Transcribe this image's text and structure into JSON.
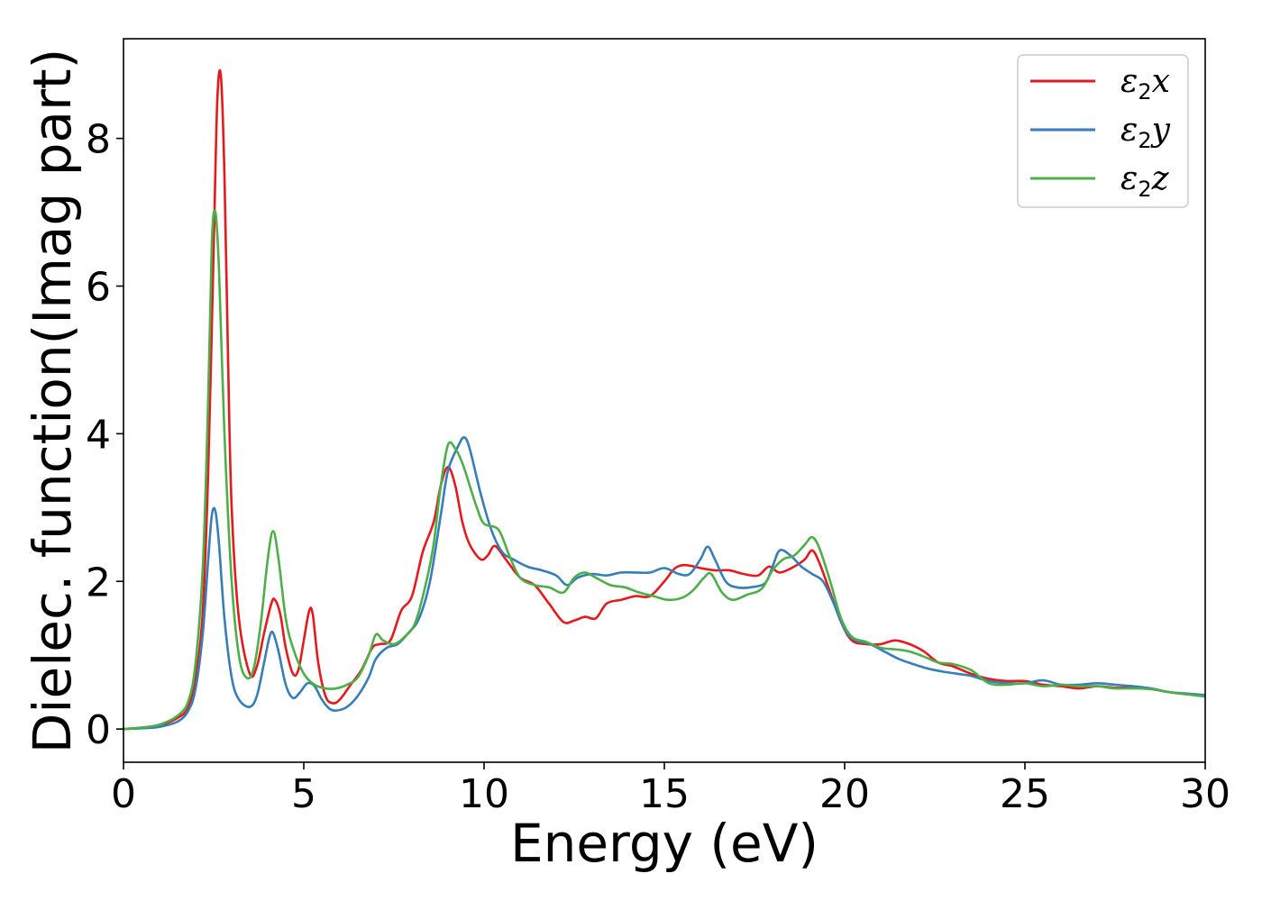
{
  "chart_data": {
    "type": "line",
    "xlabel": "Energy (eV)",
    "ylabel": "Dielec. function(Imag part)",
    "xlim": [
      0,
      30
    ],
    "ylim": [
      -0.45,
      9.35
    ],
    "xticks": [
      0,
      5,
      10,
      15,
      20,
      25,
      30
    ],
    "xtick_labels": [
      "0",
      "5",
      "10",
      "15",
      "20",
      "25",
      "30"
    ],
    "yticks": [
      0,
      2,
      4,
      6,
      8
    ],
    "ytick_labels": [
      "0",
      "2",
      "4",
      "6",
      "8"
    ],
    "grid": false,
    "legend_position": "top-right",
    "series": [
      {
        "name": "ε2x",
        "legend": {
          "base": "ε",
          "sub": "2",
          "var": "x"
        },
        "color": "#e41a1c",
        "points": [
          [
            0,
            0
          ],
          [
            0.5,
            0.02
          ],
          [
            1.0,
            0.05
          ],
          [
            1.5,
            0.15
          ],
          [
            1.8,
            0.3
          ],
          [
            2.0,
            0.7
          ],
          [
            2.2,
            1.6
          ],
          [
            2.35,
            3.5
          ],
          [
            2.5,
            6.5
          ],
          [
            2.6,
            8.5
          ],
          [
            2.7,
            8.85
          ],
          [
            2.8,
            7.5
          ],
          [
            2.9,
            5.0
          ],
          [
            3.0,
            3.0
          ],
          [
            3.2,
            1.5
          ],
          [
            3.5,
            0.75
          ],
          [
            3.7,
            0.85
          ],
          [
            3.9,
            1.3
          ],
          [
            4.1,
            1.7
          ],
          [
            4.2,
            1.75
          ],
          [
            4.35,
            1.55
          ],
          [
            4.5,
            1.1
          ],
          [
            4.7,
            0.75
          ],
          [
            4.85,
            0.8
          ],
          [
            5.0,
            1.2
          ],
          [
            5.15,
            1.6
          ],
          [
            5.25,
            1.55
          ],
          [
            5.4,
            0.9
          ],
          [
            5.6,
            0.45
          ],
          [
            5.8,
            0.35
          ],
          [
            6.0,
            0.4
          ],
          [
            6.3,
            0.6
          ],
          [
            6.6,
            0.8
          ],
          [
            6.9,
            1.1
          ],
          [
            7.1,
            1.15
          ],
          [
            7.4,
            1.2
          ],
          [
            7.7,
            1.6
          ],
          [
            8.0,
            1.8
          ],
          [
            8.3,
            2.4
          ],
          [
            8.6,
            2.8
          ],
          [
            8.8,
            3.3
          ],
          [
            9.0,
            3.55
          ],
          [
            9.2,
            3.3
          ],
          [
            9.4,
            2.8
          ],
          [
            9.6,
            2.5
          ],
          [
            9.9,
            2.3
          ],
          [
            10.1,
            2.35
          ],
          [
            10.3,
            2.48
          ],
          [
            10.6,
            2.3
          ],
          [
            11.0,
            2.05
          ],
          [
            11.4,
            1.95
          ],
          [
            11.8,
            1.7
          ],
          [
            12.2,
            1.45
          ],
          [
            12.5,
            1.47
          ],
          [
            12.8,
            1.52
          ],
          [
            13.1,
            1.5
          ],
          [
            13.4,
            1.7
          ],
          [
            13.8,
            1.75
          ],
          [
            14.2,
            1.8
          ],
          [
            14.6,
            1.8
          ],
          [
            15.0,
            2.0
          ],
          [
            15.3,
            2.18
          ],
          [
            15.6,
            2.22
          ],
          [
            16.0,
            2.18
          ],
          [
            16.4,
            2.15
          ],
          [
            16.8,
            2.15
          ],
          [
            17.2,
            2.1
          ],
          [
            17.6,
            2.08
          ],
          [
            17.9,
            2.2
          ],
          [
            18.2,
            2.12
          ],
          [
            18.6,
            2.2
          ],
          [
            18.9,
            2.3
          ],
          [
            19.1,
            2.42
          ],
          [
            19.3,
            2.25
          ],
          [
            19.6,
            1.85
          ],
          [
            19.9,
            1.45
          ],
          [
            20.2,
            1.2
          ],
          [
            20.6,
            1.15
          ],
          [
            21.0,
            1.15
          ],
          [
            21.4,
            1.2
          ],
          [
            21.8,
            1.15
          ],
          [
            22.2,
            1.05
          ],
          [
            22.6,
            0.9
          ],
          [
            23.0,
            0.85
          ],
          [
            23.5,
            0.75
          ],
          [
            24.0,
            0.68
          ],
          [
            24.5,
            0.65
          ],
          [
            25.0,
            0.65
          ],
          [
            25.5,
            0.6
          ],
          [
            26.0,
            0.58
          ],
          [
            26.5,
            0.55
          ],
          [
            27.0,
            0.58
          ],
          [
            27.5,
            0.56
          ],
          [
            28.0,
            0.56
          ],
          [
            28.5,
            0.54
          ],
          [
            29.0,
            0.5
          ],
          [
            29.5,
            0.47
          ],
          [
            30.0,
            0.46
          ]
        ]
      },
      {
        "name": "ε2y",
        "legend": {
          "base": "ε",
          "sub": "2",
          "var": "y"
        },
        "color": "#377eb8",
        "points": [
          [
            0,
            0
          ],
          [
            0.5,
            0.01
          ],
          [
            1.0,
            0.03
          ],
          [
            1.5,
            0.1
          ],
          [
            1.8,
            0.25
          ],
          [
            2.0,
            0.55
          ],
          [
            2.2,
            1.3
          ],
          [
            2.35,
            2.3
          ],
          [
            2.45,
            2.9
          ],
          [
            2.55,
            2.95
          ],
          [
            2.65,
            2.5
          ],
          [
            2.8,
            1.5
          ],
          [
            3.0,
            0.7
          ],
          [
            3.2,
            0.4
          ],
          [
            3.5,
            0.3
          ],
          [
            3.7,
            0.45
          ],
          [
            3.9,
            0.9
          ],
          [
            4.05,
            1.25
          ],
          [
            4.15,
            1.3
          ],
          [
            4.3,
            1.05
          ],
          [
            4.5,
            0.6
          ],
          [
            4.7,
            0.42
          ],
          [
            4.9,
            0.5
          ],
          [
            5.1,
            0.62
          ],
          [
            5.3,
            0.58
          ],
          [
            5.5,
            0.4
          ],
          [
            5.7,
            0.28
          ],
          [
            5.9,
            0.25
          ],
          [
            6.2,
            0.3
          ],
          [
            6.5,
            0.45
          ],
          [
            6.8,
            0.7
          ],
          [
            7.0,
            0.95
          ],
          [
            7.3,
            1.1
          ],
          [
            7.6,
            1.15
          ],
          [
            7.9,
            1.3
          ],
          [
            8.2,
            1.5
          ],
          [
            8.5,
            2.0
          ],
          [
            8.8,
            2.9
          ],
          [
            9.0,
            3.5
          ],
          [
            9.3,
            3.85
          ],
          [
            9.45,
            3.95
          ],
          [
            9.6,
            3.8
          ],
          [
            9.9,
            3.2
          ],
          [
            10.2,
            2.7
          ],
          [
            10.5,
            2.4
          ],
          [
            10.8,
            2.3
          ],
          [
            11.2,
            2.2
          ],
          [
            11.6,
            2.15
          ],
          [
            12.0,
            2.08
          ],
          [
            12.3,
            1.95
          ],
          [
            12.6,
            2.05
          ],
          [
            13.0,
            2.1
          ],
          [
            13.4,
            2.08
          ],
          [
            13.8,
            2.12
          ],
          [
            14.2,
            2.12
          ],
          [
            14.6,
            2.12
          ],
          [
            15.0,
            2.18
          ],
          [
            15.4,
            2.1
          ],
          [
            15.7,
            2.1
          ],
          [
            16.0,
            2.3
          ],
          [
            16.2,
            2.47
          ],
          [
            16.4,
            2.3
          ],
          [
            16.7,
            2.0
          ],
          [
            17.0,
            1.92
          ],
          [
            17.4,
            1.92
          ],
          [
            17.8,
            1.98
          ],
          [
            18.0,
            2.2
          ],
          [
            18.2,
            2.42
          ],
          [
            18.5,
            2.35
          ],
          [
            18.8,
            2.2
          ],
          [
            19.1,
            2.1
          ],
          [
            19.4,
            2.0
          ],
          [
            19.7,
            1.7
          ],
          [
            20.0,
            1.35
          ],
          [
            20.3,
            1.2
          ],
          [
            20.7,
            1.15
          ],
          [
            21.1,
            1.05
          ],
          [
            21.5,
            0.95
          ],
          [
            21.9,
            0.88
          ],
          [
            22.3,
            0.82
          ],
          [
            22.7,
            0.78
          ],
          [
            23.1,
            0.75
          ],
          [
            23.5,
            0.72
          ],
          [
            24.0,
            0.65
          ],
          [
            24.5,
            0.62
          ],
          [
            25.0,
            0.62
          ],
          [
            25.5,
            0.66
          ],
          [
            26.0,
            0.6
          ],
          [
            26.5,
            0.6
          ],
          [
            27.0,
            0.62
          ],
          [
            27.5,
            0.6
          ],
          [
            28.0,
            0.58
          ],
          [
            28.5,
            0.55
          ],
          [
            29.0,
            0.5
          ],
          [
            29.5,
            0.48
          ],
          [
            30.0,
            0.46
          ]
        ]
      },
      {
        "name": "ε2z",
        "legend": {
          "base": "ε",
          "sub": "2",
          "var": "z"
        },
        "color": "#4daf4a",
        "points": [
          [
            0,
            0
          ],
          [
            0.5,
            0.02
          ],
          [
            1.0,
            0.06
          ],
          [
            1.5,
            0.18
          ],
          [
            1.8,
            0.38
          ],
          [
            2.0,
            0.9
          ],
          [
            2.2,
            2.2
          ],
          [
            2.35,
            4.5
          ],
          [
            2.45,
            6.6
          ],
          [
            2.55,
            7.0
          ],
          [
            2.65,
            6.2
          ],
          [
            2.8,
            4.0
          ],
          [
            3.0,
            2.0
          ],
          [
            3.2,
            1.0
          ],
          [
            3.4,
            0.7
          ],
          [
            3.6,
            0.8
          ],
          [
            3.8,
            1.4
          ],
          [
            4.0,
            2.3
          ],
          [
            4.15,
            2.68
          ],
          [
            4.3,
            2.3
          ],
          [
            4.5,
            1.5
          ],
          [
            4.7,
            1.1
          ],
          [
            5.0,
            0.75
          ],
          [
            5.3,
            0.6
          ],
          [
            5.6,
            0.55
          ],
          [
            5.9,
            0.55
          ],
          [
            6.2,
            0.6
          ],
          [
            6.5,
            0.7
          ],
          [
            6.8,
            1.0
          ],
          [
            7.0,
            1.28
          ],
          [
            7.2,
            1.2
          ],
          [
            7.5,
            1.15
          ],
          [
            7.8,
            1.25
          ],
          [
            8.1,
            1.45
          ],
          [
            8.4,
            2.0
          ],
          [
            8.6,
            2.5
          ],
          [
            8.8,
            3.3
          ],
          [
            9.0,
            3.85
          ],
          [
            9.2,
            3.8
          ],
          [
            9.4,
            3.6
          ],
          [
            9.6,
            3.3
          ],
          [
            9.8,
            3.0
          ],
          [
            10.0,
            2.78
          ],
          [
            10.4,
            2.7
          ],
          [
            10.7,
            2.35
          ],
          [
            11.0,
            2.05
          ],
          [
            11.4,
            1.95
          ],
          [
            11.8,
            1.92
          ],
          [
            12.2,
            1.85
          ],
          [
            12.5,
            2.05
          ],
          [
            12.8,
            2.12
          ],
          [
            13.1,
            2.05
          ],
          [
            13.5,
            1.95
          ],
          [
            13.9,
            1.92
          ],
          [
            14.3,
            1.85
          ],
          [
            14.7,
            1.8
          ],
          [
            15.1,
            1.75
          ],
          [
            15.5,
            1.78
          ],
          [
            15.8,
            1.88
          ],
          [
            16.1,
            2.05
          ],
          [
            16.3,
            2.1
          ],
          [
            16.6,
            1.85
          ],
          [
            16.9,
            1.75
          ],
          [
            17.3,
            1.82
          ],
          [
            17.7,
            1.9
          ],
          [
            18.0,
            2.15
          ],
          [
            18.3,
            2.3
          ],
          [
            18.6,
            2.35
          ],
          [
            18.9,
            2.5
          ],
          [
            19.1,
            2.6
          ],
          [
            19.3,
            2.45
          ],
          [
            19.6,
            2.0
          ],
          [
            19.9,
            1.5
          ],
          [
            20.2,
            1.25
          ],
          [
            20.6,
            1.18
          ],
          [
            21.0,
            1.1
          ],
          [
            21.4,
            1.08
          ],
          [
            21.8,
            1.05
          ],
          [
            22.2,
            0.98
          ],
          [
            22.6,
            0.9
          ],
          [
            23.0,
            0.88
          ],
          [
            23.5,
            0.8
          ],
          [
            24.0,
            0.62
          ],
          [
            24.5,
            0.6
          ],
          [
            25.0,
            0.62
          ],
          [
            25.5,
            0.58
          ],
          [
            26.0,
            0.6
          ],
          [
            26.5,
            0.58
          ],
          [
            27.0,
            0.58
          ],
          [
            27.5,
            0.55
          ],
          [
            28.0,
            0.55
          ],
          [
            28.5,
            0.54
          ],
          [
            29.0,
            0.5
          ],
          [
            29.5,
            0.47
          ],
          [
            30.0,
            0.44
          ]
        ]
      }
    ]
  }
}
